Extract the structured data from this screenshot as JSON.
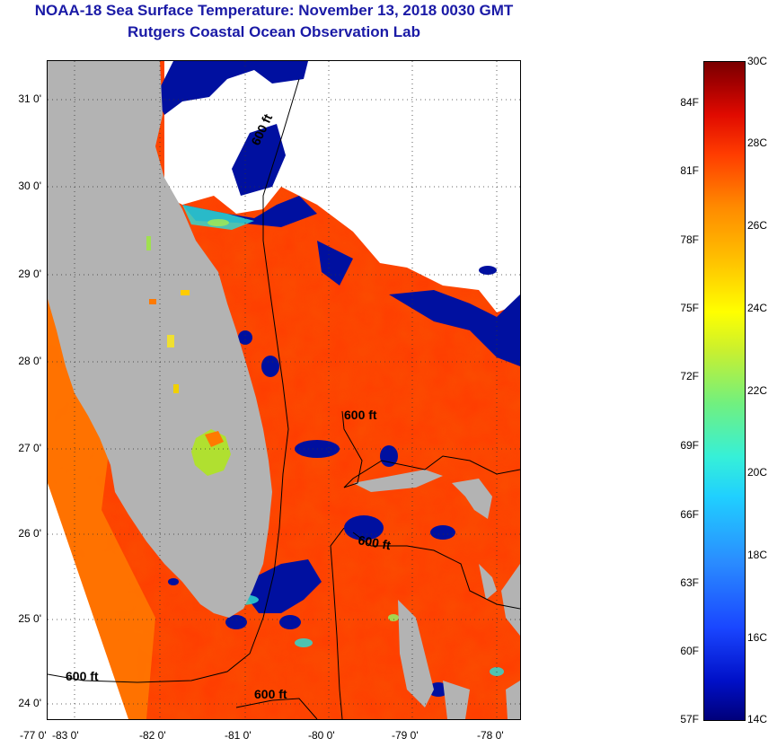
{
  "title": "NOAA-18 Sea Surface Temperature:  November 13, 2018 0030 GMT",
  "subtitle": "Rutgers Coastal Ocean Observation Lab",
  "map": {
    "lat_labels": [
      "31 0'",
      "30 0'",
      "29 0'",
      "28 0'",
      "27 0'",
      "26 0'",
      "25 0'",
      "24 0'"
    ],
    "lon_labels": [
      "-83 0'",
      "-82 0'",
      "-81 0'",
      "-80 0'",
      "-79 0'",
      "-78 0'",
      "-77 0'"
    ],
    "contour_labels": [
      "600 ft",
      "600 ft",
      "600 ft",
      "600 ft",
      "600 ft"
    ],
    "land_color": "#b3b3b3",
    "ocean_warm_color": "#ff3c00",
    "cloud_cold_color": "#0010a0"
  },
  "colorbar": {
    "fahrenheit_labels": [
      "84F",
      "81F",
      "78F",
      "75F",
      "72F",
      "69F",
      "66F",
      "63F",
      "60F",
      "57F"
    ],
    "celsius_labels": [
      "30C",
      "28C",
      "26C",
      "24C",
      "22C",
      "20C",
      "18C",
      "16C",
      "14C"
    ]
  }
}
